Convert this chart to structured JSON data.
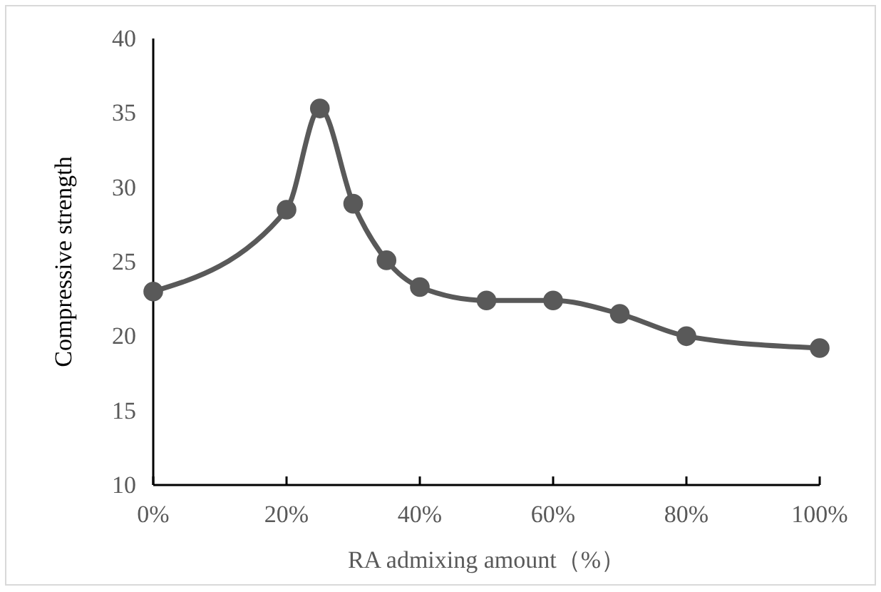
{
  "chart_data": {
    "type": "line",
    "xlabel": "RA admixing amount（%）",
    "ylabel": "Compressive strength",
    "x": [
      0,
      20,
      25,
      30,
      35,
      40,
      50,
      60,
      70,
      80,
      100
    ],
    "series": [
      {
        "color": "#595959",
        "values": [
          23,
          28.5,
          35.3,
          28.9,
          25.1,
          23.3,
          22.4,
          22.4,
          21.5,
          20.0,
          19.2
        ]
      }
    ],
    "xlim": [
      0,
      100
    ],
    "ylim": [
      10,
      40
    ],
    "xticks": [
      {
        "value": 0,
        "label": "0%"
      },
      {
        "value": 20,
        "label": "20%"
      },
      {
        "value": 40,
        "label": "40%"
      },
      {
        "value": 60,
        "label": "60%"
      },
      {
        "value": 80,
        "label": "80%"
      },
      {
        "value": 100,
        "label": "100%"
      }
    ],
    "yticks": [
      10,
      15,
      20,
      25,
      30,
      35,
      40
    ],
    "grid": false,
    "marker": "circle",
    "line_style": "solid"
  }
}
